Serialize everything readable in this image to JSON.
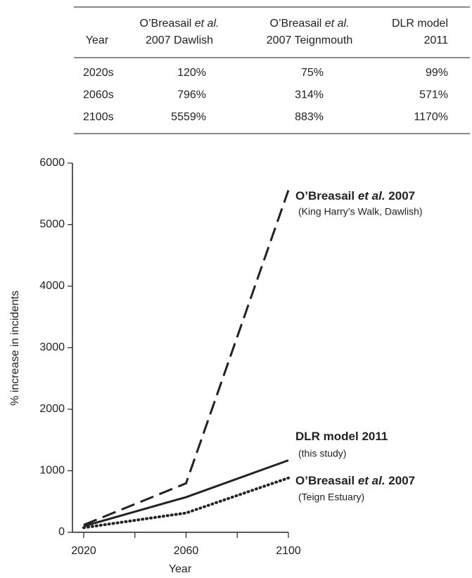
{
  "table": {
    "header": [
      {
        "line1": [
          {
            "text": "Year"
          }
        ]
      },
      {
        "line1": [
          {
            "text": "O’Breasail "
          },
          {
            "text": "et al.",
            "italic": true
          }
        ],
        "line2": "2007 Dawlish"
      },
      {
        "line1": [
          {
            "text": "O’Breasail "
          },
          {
            "text": "et al.",
            "italic": true
          }
        ],
        "line2": "2007 Teignmouth"
      },
      {
        "line1": [
          {
            "text": "DLR model"
          }
        ],
        "line2": "2011"
      }
    ],
    "rows": [
      [
        "2020s",
        "120%",
        "75%",
        "99%"
      ],
      [
        "2060s",
        "796%",
        "314%",
        "571%"
      ],
      [
        "2100s",
        "5559%",
        "883%",
        "1170%"
      ]
    ]
  },
  "chart_data": {
    "type": "line",
    "x": [
      2020,
      2060,
      2100
    ],
    "xlabel": "Year",
    "ylabel": "% increase in incidents",
    "xlim": [
      2015.6,
      2100
    ],
    "xticks": [
      2020,
      2060,
      2100
    ],
    "xminor_ticks": [
      2040,
      2080
    ],
    "ylim": [
      0,
      6000
    ],
    "yticks": [
      0,
      1000,
      2000,
      3000,
      4000,
      5000,
      6000
    ],
    "series": [
      {
        "label": [
          {
            "text": "O’Breasail "
          },
          {
            "text": "et al.",
            "italic": true
          },
          {
            "text": " 2007"
          }
        ],
        "note": "(King Harry’s Walk, Dawlish)",
        "color": "#222222",
        "dash": "dashed",
        "values": [
          120,
          796,
          5559
        ]
      },
      {
        "label": [
          {
            "text": "DLR model 2011"
          }
        ],
        "note": "(this study)",
        "color": "#222222",
        "dash": "solid",
        "values": [
          99,
          571,
          1170
        ]
      },
      {
        "label": [
          {
            "text": "O’Breasail "
          },
          {
            "text": "et al.",
            "italic": true
          },
          {
            "text": " 2007"
          }
        ],
        "note": "(Teign Estuary)",
        "color": "#222222",
        "dash": "dotted",
        "values": [
          75,
          314,
          883
        ]
      }
    ]
  }
}
